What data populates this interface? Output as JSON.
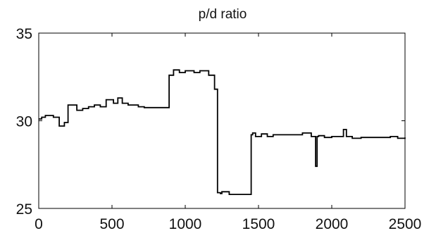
{
  "chart_data": {
    "type": "line",
    "title": "p/d ratio",
    "xlabel": "",
    "ylabel": "",
    "xlim": [
      0,
      2500
    ],
    "ylim": [
      25,
      35
    ],
    "xticks": [
      0,
      500,
      1000,
      1500,
      2000,
      2500
    ],
    "yticks": [
      25,
      30,
      35
    ],
    "grid": false,
    "series": [
      {
        "step": true,
        "color": "#000000",
        "x": [
          0,
          20,
          45,
          100,
          140,
          175,
          200,
          260,
          300,
          340,
          380,
          420,
          460,
          510,
          540,
          570,
          610,
          680,
          720,
          890,
          920,
          960,
          1000,
          1060,
          1100,
          1160,
          1200,
          1220,
          1240,
          1250,
          1300,
          1350,
          1400,
          1450,
          1460,
          1480,
          1520,
          1560,
          1600,
          1700,
          1800,
          1860,
          1890,
          1900,
          1910,
          1950,
          2000,
          2080,
          2100,
          2140,
          2200,
          2400,
          2450,
          2500
        ],
        "y": [
          30.1,
          30.2,
          30.3,
          30.2,
          29.7,
          29.9,
          30.9,
          30.6,
          30.7,
          30.8,
          30.9,
          30.8,
          31.2,
          31.0,
          31.3,
          31.0,
          30.9,
          30.8,
          30.75,
          32.6,
          32.9,
          32.75,
          32.85,
          32.75,
          32.85,
          32.6,
          31.8,
          25.9,
          25.85,
          25.95,
          25.8,
          25.8,
          25.8,
          29.2,
          29.3,
          29.1,
          29.25,
          29.1,
          29.2,
          29.2,
          29.3,
          29.1,
          27.4,
          29.1,
          29.15,
          29.05,
          29.1,
          29.5,
          29.1,
          29.0,
          29.05,
          29.1,
          29.0,
          29.05
        ]
      }
    ]
  }
}
